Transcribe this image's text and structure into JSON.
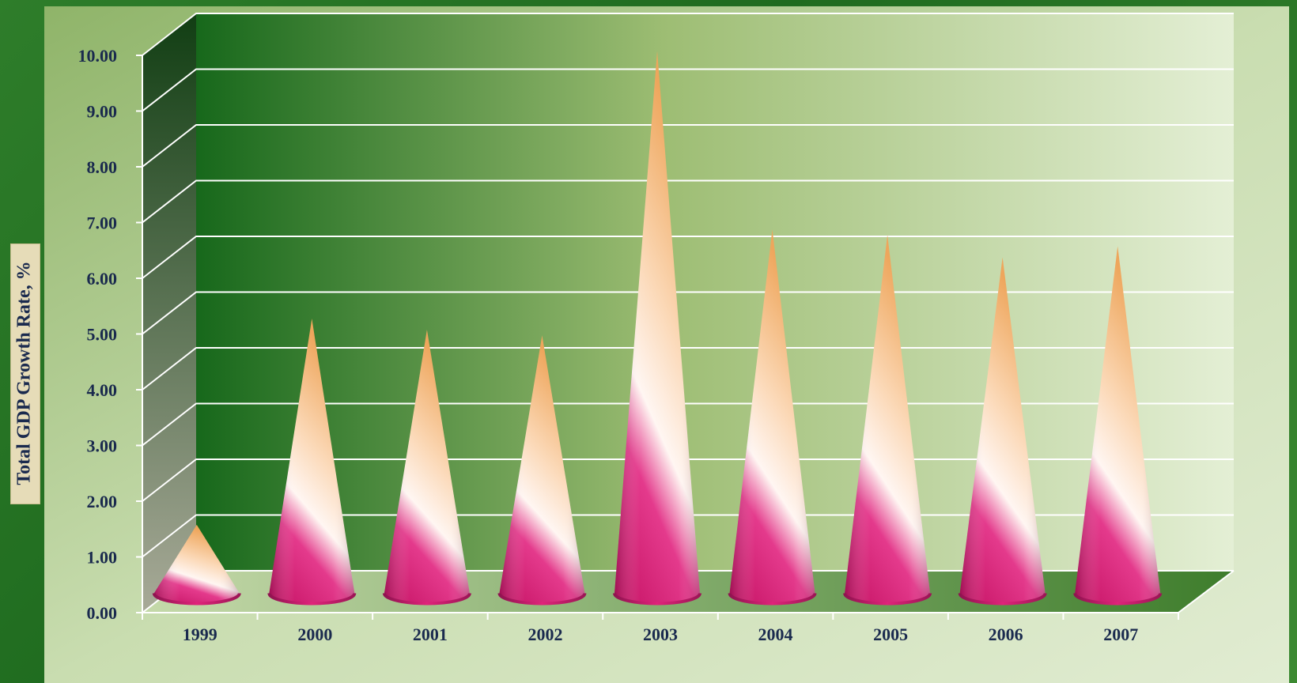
{
  "chart_data": {
    "type": "bar",
    "shape": "cone",
    "categories": [
      "1999",
      "2000",
      "2001",
      "2002",
      "2003",
      "2004",
      "2005",
      "2006",
      "2007"
    ],
    "series": [
      {
        "values": [
          1.2,
          4.9,
          4.7,
          4.6,
          9.7,
          6.5,
          6.4,
          6.0,
          6.2
        ]
      }
    ],
    "xlabel": "",
    "ylabel": "Total GDP Growth Rate, %",
    "ylim": [
      0,
      10
    ],
    "yticks": [
      "0.00",
      "1.00",
      "2.00",
      "3.00",
      "4.00",
      "5.00",
      "6.00",
      "7.00",
      "8.00",
      "9.00",
      "10.00"
    ],
    "grid": true,
    "legend": "none",
    "colors": {
      "cone_base": "#d6166f",
      "cone_highlight": "#fff4f0",
      "cone_top": "#f3b06a",
      "back_wall_left": "#1a6a1e",
      "back_wall_right": "#e3eed3",
      "tick_label": "#1a2a4e",
      "grid": "#ffffff"
    }
  }
}
